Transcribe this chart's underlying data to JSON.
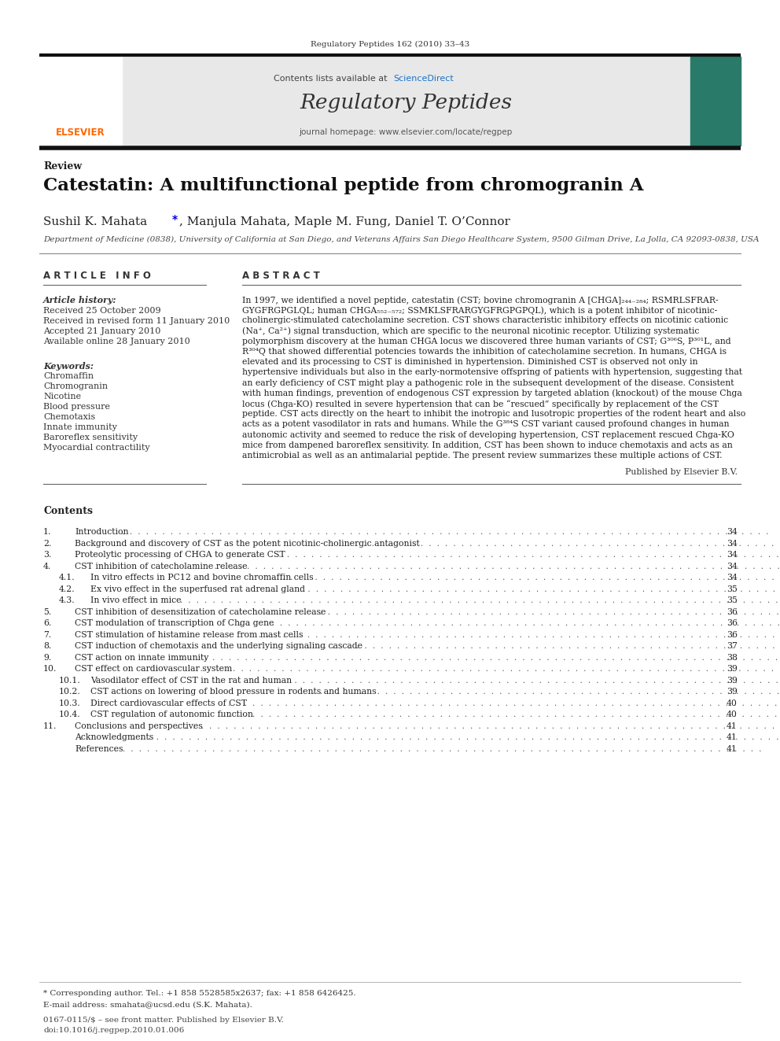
{
  "page_width": 9.92,
  "page_height": 13.23,
  "bg_color": "#ffffff",
  "top_journal_ref": "Regulatory Peptides 162 (2010) 33–43",
  "journal_name": "Regulatory Peptides",
  "journal_url": "journal homepage: www.elsevier.com/locate/regpep",
  "review_label": "Review",
  "title": "Catestatin: A multifunctional peptide from chromogranin A",
  "author_pre": "Sushil K. Mahata ",
  "author_star": "*",
  "author_post": ", Manjula Mahata, Maple M. Fung, Daniel T. O’Connor",
  "affiliation": "Department of Medicine (0838), University of California at San Diego, and Veterans Affairs San Diego Healthcare System, 9500 Gilman Drive, La Jolla, CA 92093-0838, USA",
  "article_info_header": "A R T I C L E   I N F O",
  "abstract_header": "A B S T R A C T",
  "article_history_label": "Article history:",
  "received": "Received 25 October 2009",
  "revised": "Received in revised form 11 January 2010",
  "accepted": "Accepted 21 January 2010",
  "available": "Available online 28 January 2010",
  "keywords_label": "Keywords:",
  "keywords": [
    "Chromaffin",
    "Chromogranin",
    "Nicotine",
    "Blood pressure",
    "Chemotaxis",
    "Innate immunity",
    "Baroreflex sensitivity",
    "Myocardial contractility"
  ],
  "abstract_lines": [
    "In 1997, we identified a novel peptide, catestatin (CST; bovine chromogranin A [CHGA]₂₄₄₋₂₈₄; RSMRLSFRAR-",
    "GYGFRGPGLQL; human CHGA₅₅₂₋₅₇₂; SSMKLSFRARGYGFRGPGPQL), which is a potent inhibitor of nicotinic-",
    "cholinergic-stimulated catecholamine secretion. CST shows characteristic inhibitory effects on nicotinic cationic",
    "(Na⁺, Ca²⁺) signal transduction, which are specific to the neuronal nicotinic receptor. Utilizing systematic",
    "polymorphism discovery at the human CHGA locus we discovered three human variants of CST; G³⁰⁶S, P³⁰¹L, and",
    "R³⁰⁴Q that showed differential potencies towards the inhibition of catecholamine secretion. In humans, CHGA is",
    "elevated and its processing to CST is diminished in hypertension. Diminished CST is observed not only in",
    "hypertensive individuals but also in the early-normotensive offspring of patients with hypertension, suggesting that",
    "an early deficiency of CST might play a pathogenic role in the subsequent development of the disease. Consistent",
    "with human findings, prevention of endogenous CST expression by targeted ablation (knockout) of the mouse Chga",
    "locus (Chga-KO) resulted in severe hypertension that can be “rescued” specifically by replacement of the CST",
    "peptide. CST acts directly on the heart to inhibit the inotropic and lusotropic properties of the rodent heart and also",
    "acts as a potent vasodilator in rats and humans. While the G³⁸⁴S CST variant caused profound changes in human",
    "autonomic activity and seemed to reduce the risk of developing hypertension, CST replacement rescued Chga-KO",
    "mice from dampened baroreflex sensitivity. In addition, CST has been shown to induce chemotaxis and acts as an",
    "antimicrobial as well as an antimalarial peptide. The present review summarizes these multiple actions of CST."
  ],
  "published_by": "Published by Elsevier B.V.",
  "contents_header": "Contents",
  "toc_entries": [
    [
      "1.",
      "Introduction",
      "34",
      false
    ],
    [
      "2.",
      "Background and discovery of CST as the potent nicotinic-cholinergic antagonist",
      "34",
      false
    ],
    [
      "3.",
      "Proteolytic processing of CHGA to generate CST",
      "34",
      false
    ],
    [
      "4.",
      "CST inhibition of catecholamine release",
      "34",
      false
    ],
    [
      "4.1.",
      "In vitro effects in PC12 and bovine chromaffin cells",
      "34",
      true
    ],
    [
      "4.2.",
      "Ex vivo effect in the superfused rat adrenal gland",
      "35",
      true
    ],
    [
      "4.3.",
      "In vivo effect in mice",
      "35",
      true
    ],
    [
      "5.",
      "CST inhibition of desensitization of catecholamine release",
      "36",
      false
    ],
    [
      "6.",
      "CST modulation of transcription of Chga gene",
      "36",
      false
    ],
    [
      "7.",
      "CST stimulation of histamine release from mast cells",
      "36",
      false
    ],
    [
      "8.",
      "CST induction of chemotaxis and the underlying signaling cascade",
      "37",
      false
    ],
    [
      "9.",
      "CST action on innate immunity",
      "38",
      false
    ],
    [
      "10.",
      "CST effect on cardiovascular system",
      "39",
      false
    ],
    [
      "10.1.",
      "Vasodilator effect of CST in the rat and human",
      "39",
      true
    ],
    [
      "10.2.",
      "CST actions on lowering of blood pressure in rodents and humans",
      "39",
      true
    ],
    [
      "10.3.",
      "Direct cardiovascular effects of CST",
      "40",
      true
    ],
    [
      "10.4.",
      "CST regulation of autonomic function",
      "40",
      true
    ],
    [
      "11.",
      "Conclusions and perspectives",
      "41",
      false
    ],
    [
      "",
      "Acknowledgments",
      "41",
      false
    ],
    [
      "",
      "References",
      "41",
      false
    ]
  ],
  "footnote_star": "* Corresponding author. Tel.: +1 858 5528585x2637; fax: +1 858 6426425.",
  "footnote_email": "E-mail address: smahata@ucsd.edu (S.K. Mahata).",
  "footer_issn": "0167-0115/$ – see front matter. Published by Elsevier B.V.",
  "footer_doi": "doi:10.1016/j.regpep.2010.01.006",
  "header_bg": "#e8e8e8",
  "thick_bar_color": "#1a1a1a",
  "sciencedirect_color": "#1a73c8",
  "elsevier_color": "#ff6600"
}
